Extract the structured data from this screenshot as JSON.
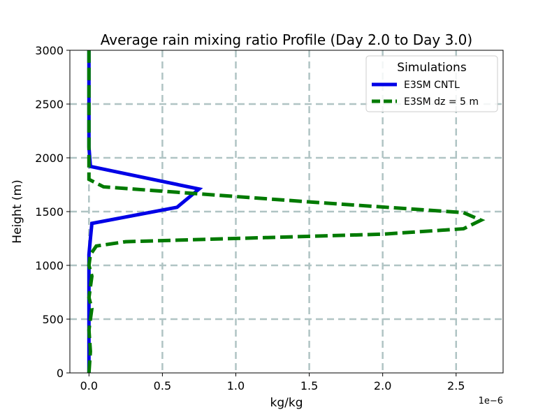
{
  "chart_data": {
    "type": "line",
    "title": "Average rain mixing ratio Profile (Day 2.0 to Day 3.0)",
    "xlabel": "kg/kg",
    "ylabel": "Height (m)",
    "x_offset_label": "1e−6",
    "xlim": [
      -0.13,
      2.82
    ],
    "ylim": [
      0,
      3000
    ],
    "x_ticks": [
      0.0,
      0.5,
      1.0,
      1.5,
      2.0,
      2.5
    ],
    "x_tick_labels": [
      "0.0",
      "0.5",
      "1.0",
      "1.5",
      "2.0",
      "2.5"
    ],
    "y_ticks": [
      0,
      500,
      1000,
      1500,
      2000,
      2500,
      3000
    ],
    "y_tick_labels": [
      "0",
      "500",
      "1000",
      "1500",
      "2000",
      "2500",
      "3000"
    ],
    "grid": true,
    "legend": {
      "title": "Simulations",
      "location": "top-right"
    },
    "series": [
      {
        "name": "E3SM CNTL",
        "color": "#0000e6",
        "style": "solid",
        "x": [
          0.0,
          0.0,
          0.0,
          0.0,
          0.0,
          0.01,
          0.02,
          0.6,
          0.75,
          0.01,
          0.0,
          0.0,
          0.0,
          0.0,
          0.0
        ],
        "y": [
          0,
          200,
          500,
          800,
          1100,
          1250,
          1390,
          1540,
          1710,
          1920,
          2100,
          2300,
          2500,
          2800,
          3000
        ]
      },
      {
        "name": "E3SM dz = 5 m",
        "color": "#007a00",
        "style": "dashed",
        "x": [
          0.0,
          0.01,
          0.0,
          0.02,
          0.0,
          0.02,
          0.0,
          0.01,
          0.05,
          0.25,
          2.0,
          2.55,
          2.67,
          2.55,
          1.5,
          0.9,
          0.1,
          0.0,
          0.0,
          0.0,
          0.0,
          0.0,
          0.0
        ],
        "y": [
          0,
          200,
          400,
          600,
          700,
          900,
          1000,
          1100,
          1180,
          1220,
          1290,
          1340,
          1420,
          1490,
          1590,
          1650,
          1730,
          1800,
          2000,
          2300,
          2600,
          2800,
          3000
        ]
      }
    ]
  }
}
